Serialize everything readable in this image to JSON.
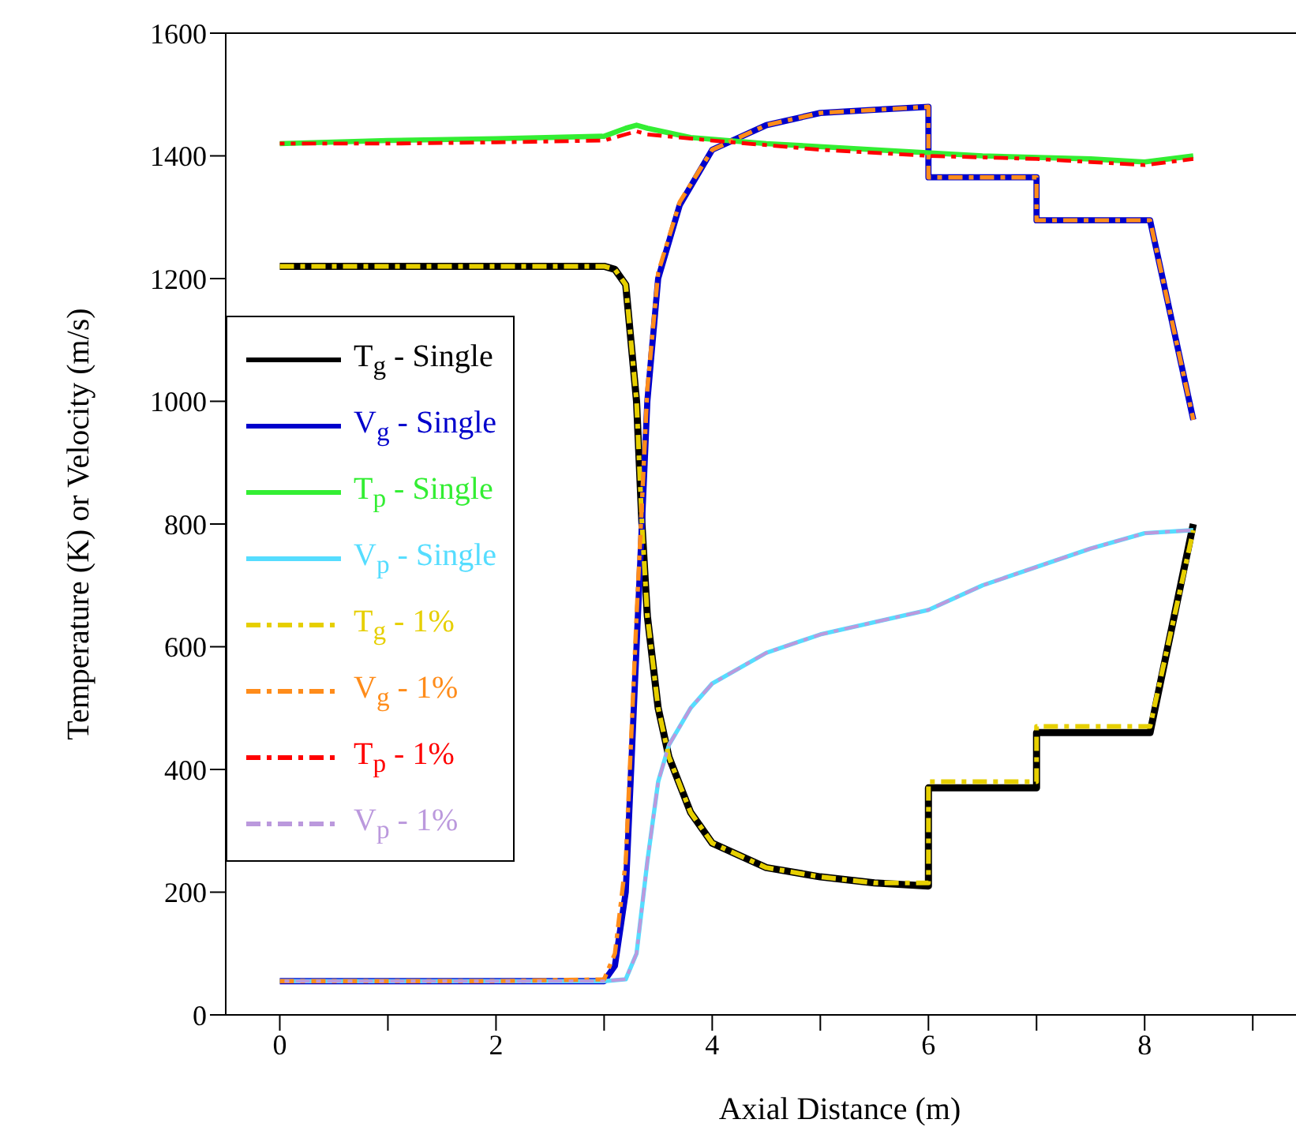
{
  "chart_data": {
    "type": "line",
    "xlabel": "Axial Distance (m)",
    "ylabel": "Temperature (K) or Velocity (m/s)",
    "xlim": [
      -0.5,
      9.4
    ],
    "xticks": [
      0,
      {
        "value": 1,
        "label": null
      },
      2,
      {
        "value": 3,
        "label": null
      },
      4,
      {
        "value": 5,
        "label": null
      },
      6,
      {
        "value": 7,
        "label": null
      },
      8,
      {
        "value": 9,
        "label": null
      }
    ],
    "ylim": [
      0,
      1600
    ],
    "yticks": [
      0,
      200,
      400,
      600,
      800,
      1000,
      1200,
      1400,
      1600
    ],
    "grid": false,
    "legend": "left",
    "marker": "none",
    "series": [
      {
        "name": "T$_{g}$ - Single",
        "color": "#000000",
        "line_style": "solid",
        "x": [
          0,
          1,
          2,
          3,
          3.1,
          3.2,
          3.3,
          3.35,
          3.4,
          3.5,
          3.6,
          3.8,
          4,
          4.5,
          5,
          5.5,
          6,
          6,
          7,
          7,
          8.05,
          8.45
        ],
        "values": [
          1220,
          1220,
          1220,
          1220,
          1215,
          1190,
          1000,
          800,
          650,
          500,
          420,
          330,
          280,
          240,
          225,
          215,
          210,
          370,
          370,
          460,
          460,
          800
        ]
      },
      {
        "name": "V$_{g}$ - Single",
        "color": "#0000cc",
        "line_style": "solid",
        "x": [
          0,
          1,
          2,
          3,
          3.1,
          3.2,
          3.3,
          3.4,
          3.5,
          3.7,
          4,
          4.5,
          5,
          5.5,
          6,
          6,
          7,
          7,
          8.05,
          8.45
        ],
        "values": [
          55,
          55,
          55,
          55,
          80,
          200,
          600,
          1000,
          1200,
          1320,
          1410,
          1450,
          1470,
          1475,
          1480,
          1365,
          1365,
          1295,
          1295,
          970
        ]
      },
      {
        "name": "T$_{p}$ - Single",
        "color": "#33ee33",
        "line_style": "solid",
        "x": [
          0,
          1,
          2,
          3,
          3.2,
          3.3,
          3.4,
          3.8,
          4.5,
          5.5,
          6.5,
          7.5,
          8,
          8.45
        ],
        "values": [
          1420,
          1425,
          1428,
          1432,
          1445,
          1450,
          1445,
          1430,
          1420,
          1410,
          1400,
          1395,
          1390,
          1400
        ]
      },
      {
        "name": "V$_{p}$ - Single",
        "color": "#55ddff",
        "line_style": "solid",
        "x": [
          0,
          1,
          2,
          3,
          3.2,
          3.3,
          3.4,
          3.5,
          3.6,
          3.8,
          4,
          4.5,
          5,
          5.5,
          6,
          6.5,
          7,
          7.5,
          8,
          8.45
        ],
        "values": [
          55,
          55,
          55,
          55,
          58,
          100,
          250,
          380,
          440,
          500,
          540,
          590,
          620,
          640,
          660,
          700,
          730,
          760,
          785,
          790
        ]
      },
      {
        "name": "T$_{g}$ - 1%",
        "color": "#e6cf00",
        "line_style": "dashed",
        "x": [
          0,
          1,
          2,
          3,
          3.1,
          3.2,
          3.3,
          3.35,
          3.4,
          3.5,
          3.6,
          3.8,
          4,
          4.5,
          5,
          5.5,
          6,
          6,
          7,
          7,
          8.05,
          8.45
        ],
        "values": [
          1220,
          1220,
          1220,
          1220,
          1215,
          1190,
          1000,
          800,
          650,
          500,
          420,
          330,
          280,
          240,
          225,
          215,
          215,
          380,
          380,
          470,
          470,
          790
        ]
      },
      {
        "name": "V$_{g}$ - 1%",
        "color": "#ff8c1a",
        "line_style": "dashed",
        "x": [
          0,
          1,
          2,
          3,
          3.1,
          3.2,
          3.3,
          3.4,
          3.5,
          3.7,
          4,
          4.5,
          5,
          5.5,
          6,
          6,
          7,
          7,
          8.05,
          8.45
        ],
        "values": [
          55,
          55,
          55,
          58,
          100,
          250,
          650,
          1020,
          1210,
          1325,
          1410,
          1450,
          1470,
          1475,
          1480,
          1365,
          1365,
          1295,
          1295,
          970
        ]
      },
      {
        "name": "T$_{p}$ - 1%",
        "color": "#ff0000",
        "line_style": "dashed",
        "x": [
          0,
          1,
          2,
          3,
          3.2,
          3.3,
          3.4,
          4,
          5,
          6,
          7,
          7.5,
          8,
          8.45
        ],
        "values": [
          1420,
          1420,
          1422,
          1425,
          1435,
          1440,
          1435,
          1425,
          1410,
          1400,
          1395,
          1390,
          1385,
          1395
        ]
      },
      {
        "name": "V$_{p}$ - 1%",
        "color": "#bb99dd",
        "line_style": "dashed",
        "x": [
          0,
          1,
          2,
          3,
          3.2,
          3.3,
          3.4,
          3.5,
          3.6,
          3.8,
          4,
          4.5,
          5,
          5.5,
          6,
          6.5,
          7,
          7.5,
          8,
          8.45
        ],
        "values": [
          55,
          55,
          55,
          55,
          58,
          100,
          250,
          380,
          440,
          500,
          540,
          590,
          620,
          640,
          660,
          700,
          730,
          760,
          785,
          790
        ]
      }
    ]
  }
}
